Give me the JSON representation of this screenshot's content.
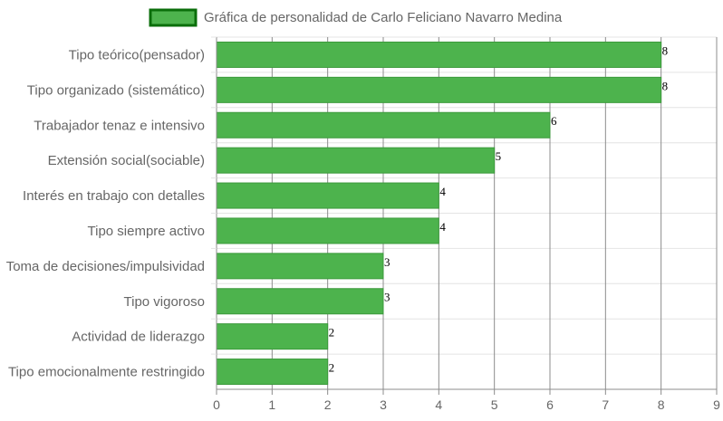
{
  "chart_data": {
    "type": "bar",
    "orientation": "horizontal",
    "legend": {
      "label": "Gráfica de personalidad de Carlo Feliciano Navarro Medina",
      "placement": "top-center"
    },
    "categories": [
      "Tipo teórico(pensador)",
      "Tipo organizado (sistemático)",
      "Trabajador tenaz e intensivo",
      "Extensión social(sociable)",
      "Interés en trabajo con detalles",
      "Tipo siempre activo",
      "Toma de decisiones/impulsividad",
      "Tipo vigoroso",
      "Actividad de liderazgo",
      "Tipo emocionalmente restringido"
    ],
    "values": [
      8,
      8,
      6,
      5,
      4,
      4,
      3,
      3,
      2,
      2
    ],
    "xlim": [
      0,
      9
    ],
    "xticks": [
      "0",
      "1",
      "2",
      "3",
      "4",
      "5",
      "6",
      "7",
      "8",
      "9"
    ],
    "grid": true,
    "colors": {
      "bar_fill": "#4db34d",
      "bar_border": "#3c9a3c",
      "legend_fill": "#4db34d",
      "legend_border": "#0a6e0a",
      "grid_vertical": "#8c8c8c",
      "grid_horizontal": "#e4e4e4",
      "axis": "#8c8c8c"
    }
  }
}
